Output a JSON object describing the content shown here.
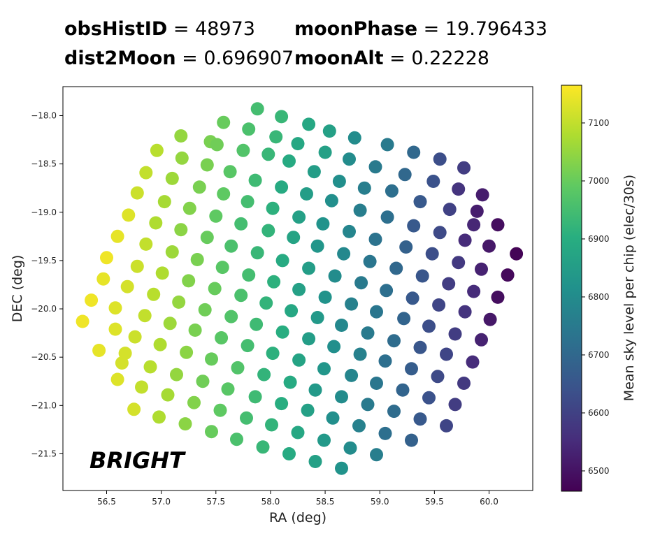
{
  "header": {
    "obsHistID": {
      "label": "obsHistID",
      "value": "48973"
    },
    "moonPhase": {
      "label": "moonPhase",
      "value": "19.796433"
    },
    "dist2Moon": {
      "label": "dist2Moon",
      "value": "0.696907"
    },
    "moonAlt": {
      "label": "moonAlt",
      "value": "0.22228"
    },
    "equals": " = "
  },
  "chart_data": {
    "type": "scatter",
    "xlabel": "RA (deg)",
    "ylabel": "DEC (deg)",
    "xlim": [
      56.1,
      60.4
    ],
    "ylim": [
      -21.88,
      -17.7
    ],
    "xticks": [
      "56.5",
      "57.0",
      "57.5",
      "58.0",
      "58.5",
      "59.0",
      "59.5",
      "60.0"
    ],
    "yticks": [
      "-18.0",
      "-18.5",
      "-19.0",
      "-19.5",
      "-20.0",
      "-20.5",
      "-21.0",
      "-21.5"
    ],
    "annotation": "BRIGHT",
    "colorbar": {
      "label": "Mean sky level per chip (elec/30s)",
      "range": [
        6465,
        7165
      ],
      "ticks": [
        "6500",
        "6600",
        "6700",
        "6800",
        "6900",
        "7000",
        "7100"
      ],
      "colormap": "viridis"
    },
    "points": [
      [
        57.88,
        -17.93,
        6950
      ],
      [
        58.1,
        -18.01,
        6930
      ],
      [
        57.57,
        -18.07,
        7000
      ],
      [
        57.8,
        -18.14,
        6960
      ],
      [
        58.35,
        -18.09,
        6880
      ],
      [
        58.54,
        -18.16,
        6860
      ],
      [
        57.18,
        -18.21,
        7050
      ],
      [
        57.45,
        -18.27,
        7020
      ],
      [
        58.05,
        -18.22,
        6930
      ],
      [
        58.77,
        -18.23,
        6800
      ],
      [
        57.51,
        -18.3,
        7010
      ],
      [
        58.25,
        -18.29,
        6880
      ],
      [
        56.96,
        -18.36,
        7090
      ],
      [
        57.75,
        -18.36,
        6970
      ],
      [
        57.98,
        -18.4,
        6930
      ],
      [
        58.5,
        -18.38,
        6860
      ],
      [
        59.07,
        -18.3,
        6750
      ],
      [
        58.72,
        -18.45,
        6800
      ],
      [
        59.31,
        -18.38,
        6700
      ],
      [
        57.19,
        -18.44,
        7050
      ],
      [
        57.42,
        -18.51,
        7020
      ],
      [
        58.17,
        -18.47,
        6890
      ],
      [
        59.55,
        -18.45,
        6630
      ],
      [
        57.63,
        -18.58,
        6980
      ],
      [
        56.86,
        -18.59,
        7100
      ],
      [
        58.4,
        -18.58,
        6850
      ],
      [
        58.96,
        -18.53,
        6750
      ],
      [
        59.77,
        -18.54,
        6590
      ],
      [
        57.1,
        -18.65,
        7060
      ],
      [
        57.86,
        -18.67,
        6940
      ],
      [
        58.63,
        -18.68,
        6810
      ],
      [
        59.23,
        -18.61,
        6700
      ],
      [
        59.49,
        -18.68,
        6640
      ],
      [
        57.35,
        -18.74,
        7020
      ],
      [
        58.1,
        -18.74,
        6890
      ],
      [
        56.78,
        -18.8,
        7110
      ],
      [
        58.86,
        -18.75,
        6760
      ],
      [
        59.72,
        -18.76,
        6570
      ],
      [
        59.94,
        -18.82,
        6520
      ],
      [
        57.57,
        -18.81,
        6990
      ],
      [
        58.33,
        -18.81,
        6850
      ],
      [
        59.11,
        -18.78,
        6720
      ],
      [
        57.03,
        -18.89,
        7070
      ],
      [
        57.79,
        -18.89,
        6950
      ],
      [
        59.37,
        -18.89,
        6660
      ],
      [
        58.56,
        -18.88,
        6810
      ],
      [
        57.26,
        -18.96,
        7030
      ],
      [
        58.02,
        -18.96,
        6910
      ],
      [
        59.64,
        -18.97,
        6600
      ],
      [
        58.82,
        -18.98,
        6760
      ],
      [
        59.89,
        -18.99,
        6520
      ],
      [
        56.7,
        -19.03,
        7130
      ],
      [
        57.5,
        -19.04,
        6990
      ],
      [
        58.26,
        -19.05,
        6860
      ],
      [
        59.07,
        -19.05,
        6720
      ],
      [
        56.95,
        -19.11,
        7080
      ],
      [
        57.73,
        -19.12,
        6950
      ],
      [
        58.48,
        -19.12,
        6820
      ],
      [
        59.31,
        -19.14,
        6660
      ],
      [
        59.86,
        -19.13,
        6540
      ],
      [
        60.08,
        -19.13,
        6490
      ],
      [
        57.18,
        -19.18,
        7040
      ],
      [
        57.98,
        -19.19,
        6920
      ],
      [
        58.72,
        -19.2,
        6780
      ],
      [
        59.55,
        -19.21,
        6620
      ],
      [
        56.6,
        -19.25,
        7140
      ],
      [
        57.42,
        -19.26,
        7000
      ],
      [
        58.21,
        -19.26,
        6870
      ],
      [
        58.96,
        -19.28,
        6730
      ],
      [
        59.78,
        -19.29,
        6550
      ],
      [
        56.86,
        -19.33,
        7100
      ],
      [
        57.64,
        -19.35,
        6960
      ],
      [
        58.43,
        -19.35,
        6830
      ],
      [
        59.24,
        -19.36,
        6680
      ],
      [
        60.0,
        -19.35,
        6510
      ],
      [
        57.1,
        -19.41,
        7060
      ],
      [
        57.88,
        -19.42,
        6930
      ],
      [
        58.67,
        -19.43,
        6790
      ],
      [
        59.48,
        -19.43,
        6630
      ],
      [
        60.25,
        -19.43,
        6470
      ],
      [
        56.5,
        -19.47,
        7150
      ],
      [
        57.33,
        -19.49,
        7020
      ],
      [
        58.11,
        -19.5,
        6890
      ],
      [
        58.91,
        -19.51,
        6740
      ],
      [
        59.72,
        -19.52,
        6580
      ],
      [
        56.78,
        -19.56,
        7110
      ],
      [
        57.56,
        -19.57,
        6980
      ],
      [
        58.35,
        -19.58,
        6850
      ],
      [
        59.15,
        -19.58,
        6700
      ],
      [
        59.93,
        -19.59,
        6530
      ],
      [
        57.01,
        -19.63,
        7080
      ],
      [
        57.8,
        -19.65,
        6950
      ],
      [
        58.59,
        -19.66,
        6800
      ],
      [
        59.39,
        -19.66,
        6650
      ],
      [
        60.17,
        -19.65,
        6480
      ],
      [
        56.47,
        -19.69,
        7140
      ],
      [
        57.25,
        -19.71,
        7030
      ],
      [
        58.03,
        -19.72,
        6910
      ],
      [
        58.83,
        -19.73,
        6750
      ],
      [
        59.63,
        -19.74,
        6590
      ],
      [
        56.69,
        -19.77,
        7120
      ],
      [
        57.49,
        -19.79,
        7000
      ],
      [
        58.26,
        -19.8,
        6860
      ],
      [
        59.06,
        -19.81,
        6720
      ],
      [
        59.86,
        -19.82,
        6550
      ],
      [
        56.93,
        -19.85,
        7090
      ],
      [
        57.73,
        -19.86,
        6960
      ],
      [
        58.5,
        -19.88,
        6820
      ],
      [
        59.3,
        -19.89,
        6660
      ],
      [
        60.08,
        -19.88,
        6490
      ],
      [
        56.36,
        -19.91,
        7150
      ],
      [
        57.16,
        -19.93,
        7050
      ],
      [
        57.96,
        -19.94,
        6920
      ],
      [
        58.74,
        -19.95,
        6770
      ],
      [
        59.54,
        -19.96,
        6610
      ],
      [
        56.58,
        -19.99,
        7130
      ],
      [
        57.4,
        -20.01,
        7010
      ],
      [
        58.19,
        -20.02,
        6880
      ],
      [
        58.97,
        -20.03,
        6740
      ],
      [
        59.78,
        -20.03,
        6570
      ],
      [
        56.85,
        -20.07,
        7100
      ],
      [
        57.64,
        -20.08,
        6970
      ],
      [
        58.43,
        -20.09,
        6840
      ],
      [
        59.22,
        -20.1,
        6690
      ],
      [
        60.01,
        -20.11,
        6510
      ],
      [
        56.28,
        -20.13,
        7150
      ],
      [
        57.08,
        -20.15,
        7060
      ],
      [
        57.87,
        -20.16,
        6940
      ],
      [
        58.65,
        -20.17,
        6790
      ],
      [
        59.45,
        -20.18,
        6630
      ],
      [
        56.58,
        -20.21,
        7130
      ],
      [
        57.31,
        -20.22,
        7020
      ],
      [
        58.11,
        -20.24,
        6900
      ],
      [
        58.89,
        -20.25,
        6750
      ],
      [
        59.69,
        -20.26,
        6590
      ],
      [
        56.76,
        -20.29,
        7110
      ],
      [
        57.55,
        -20.3,
        6980
      ],
      [
        58.35,
        -20.31,
        6850
      ],
      [
        59.13,
        -20.33,
        6710
      ],
      [
        59.93,
        -20.32,
        6530
      ],
      [
        56.99,
        -20.37,
        7080
      ],
      [
        57.79,
        -20.38,
        6950
      ],
      [
        58.58,
        -20.39,
        6810
      ],
      [
        59.37,
        -20.4,
        6650
      ],
      [
        56.43,
        -20.43,
        7140
      ],
      [
        57.23,
        -20.45,
        7040
      ],
      [
        58.02,
        -20.46,
        6910
      ],
      [
        58.82,
        -20.47,
        6770
      ],
      [
        59.61,
        -20.47,
        6610
      ],
      [
        56.67,
        -20.46,
        7120
      ],
      [
        57.46,
        -20.52,
        7000
      ],
      [
        58.26,
        -20.53,
        6870
      ],
      [
        59.05,
        -20.54,
        6720
      ],
      [
        59.85,
        -20.55,
        6550
      ],
      [
        56.64,
        -20.56,
        7120
      ],
      [
        56.9,
        -20.6,
        7090
      ],
      [
        57.7,
        -20.61,
        6970
      ],
      [
        58.49,
        -20.62,
        6830
      ],
      [
        59.29,
        -20.62,
        6670
      ],
      [
        57.14,
        -20.68,
        7050
      ],
      [
        57.94,
        -20.68,
        6920
      ],
      [
        58.74,
        -20.69,
        6780
      ],
      [
        59.53,
        -20.7,
        6620
      ],
      [
        56.6,
        -20.73,
        7130
      ],
      [
        57.38,
        -20.75,
        7010
      ],
      [
        58.18,
        -20.76,
        6890
      ],
      [
        58.97,
        -20.77,
        6740
      ],
      [
        59.77,
        -20.77,
        6580
      ],
      [
        56.82,
        -20.81,
        7100
      ],
      [
        57.61,
        -20.83,
        6980
      ],
      [
        58.41,
        -20.84,
        6840
      ],
      [
        59.21,
        -20.84,
        6690
      ],
      [
        57.06,
        -20.89,
        7070
      ],
      [
        57.86,
        -20.91,
        6940
      ],
      [
        58.65,
        -20.91,
        6800
      ],
      [
        59.45,
        -20.92,
        6640
      ],
      [
        57.3,
        -20.97,
        7030
      ],
      [
        58.1,
        -20.98,
        6900
      ],
      [
        58.89,
        -20.99,
        6750
      ],
      [
        59.69,
        -20.99,
        6590
      ],
      [
        56.75,
        -21.04,
        7120
      ],
      [
        57.54,
        -21.05,
        6990
      ],
      [
        58.34,
        -21.05,
        6860
      ],
      [
        59.13,
        -21.06,
        6710
      ],
      [
        56.98,
        -21.12,
        7080
      ],
      [
        57.78,
        -21.13,
        6950
      ],
      [
        58.57,
        -21.13,
        6810
      ],
      [
        59.37,
        -21.14,
        6660
      ],
      [
        57.22,
        -21.19,
        7040
      ],
      [
        58.01,
        -21.2,
        6920
      ],
      [
        58.81,
        -21.21,
        6770
      ],
      [
        59.61,
        -21.21,
        6610
      ],
      [
        57.46,
        -21.27,
        7000
      ],
      [
        58.25,
        -21.28,
        6880
      ],
      [
        59.05,
        -21.29,
        6720
      ],
      [
        59.29,
        -21.36,
        6680
      ],
      [
        57.69,
        -21.35,
        6960
      ],
      [
        58.49,
        -21.36,
        6840
      ],
      [
        57.93,
        -21.43,
        6930
      ],
      [
        58.73,
        -21.44,
        6800
      ],
      [
        58.17,
        -21.5,
        6890
      ],
      [
        58.97,
        -21.51,
        6760
      ],
      [
        58.41,
        -21.58,
        6860
      ],
      [
        58.65,
        -21.65,
        6820
      ]
    ]
  }
}
